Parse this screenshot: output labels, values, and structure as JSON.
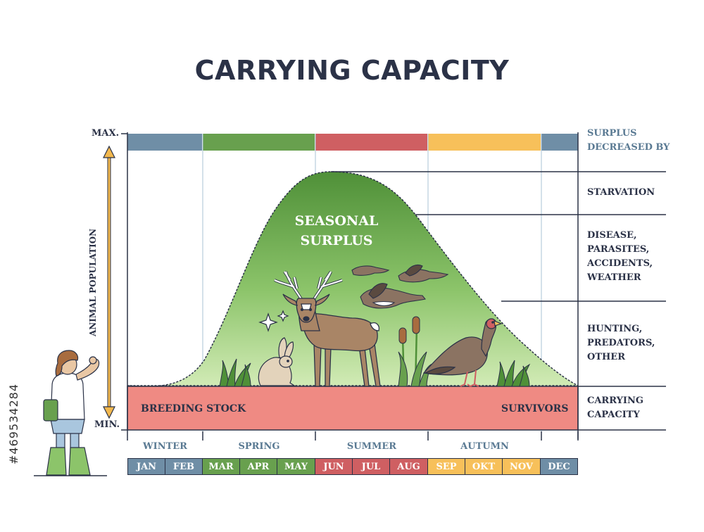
{
  "title": "CARRYING CAPACITY",
  "y_axis": {
    "max_label": "MAX.",
    "min_label": "MIN.",
    "label": "ANIMAL POPULATION"
  },
  "surplus_label": "SEASONAL\nSURPLUS",
  "band": {
    "left_label": "BREEDING STOCK",
    "right_label": "SURVIVORS"
  },
  "legend": {
    "header": "SURPLUS\nDECREASED BY",
    "items": [
      "STARVATION",
      "DISEASE,\nPARASITES,\nACCIDENTS,\nWEATHER",
      "HUNTING,\nPREDATORS,\nOTHER",
      "CARRYING\nCAPACITY"
    ]
  },
  "seasons": [
    "WINTER",
    "SPRING",
    "SUMMER",
    "AUTUMN"
  ],
  "months": [
    "JAN",
    "FEB",
    "MAR",
    "APR",
    "MAY",
    "JUN",
    "JUL",
    "AUG",
    "SEP",
    "OKT",
    "NOV",
    "DEC"
  ],
  "watermark": "#469534284",
  "colors": {
    "winter": "#6f8ea6",
    "spring": "#68a04e",
    "summer": "#cf5f62",
    "autumn": "#f7c05a",
    "band": "#ef8a83",
    "curve_top": "#5b9a3f",
    "curve_bottom": "#c3e3a3",
    "ink": "#2b3247"
  },
  "icons": [
    "deer-icon",
    "rabbit-icon",
    "turkey-icon",
    "goose-icon",
    "cattail-icon",
    "grass-icon",
    "sparkle-icon",
    "person-icon"
  ]
}
